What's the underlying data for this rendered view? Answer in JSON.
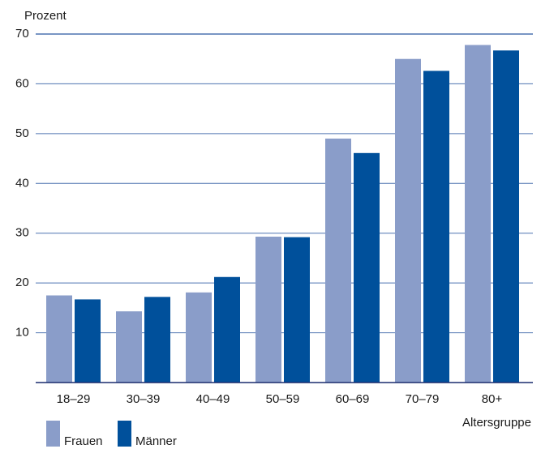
{
  "chart_data": {
    "type": "bar",
    "ylabel": "Prozent",
    "xlabel": "Altersgruppe",
    "ylim": [
      0,
      70
    ],
    "yticks": [
      10,
      20,
      30,
      40,
      50,
      60,
      70
    ],
    "grid": true,
    "legend_position": "bottom-left",
    "categories": [
      "18–29",
      "30–39",
      "40–49",
      "50–59",
      "60–69",
      "70–79",
      "80+"
    ],
    "series": [
      {
        "name": "Frauen",
        "color": "#8a9dc9",
        "values": [
          17.5,
          14.3,
          18.1,
          29.3,
          49.0,
          65.0,
          67.8
        ]
      },
      {
        "name": "Männer",
        "color": "#00509b",
        "values": [
          16.7,
          17.2,
          21.2,
          29.2,
          46.1,
          62.6,
          66.7
        ]
      }
    ],
    "axis_color": "#1a2c6e",
    "grid_color": "#4d73b0"
  }
}
